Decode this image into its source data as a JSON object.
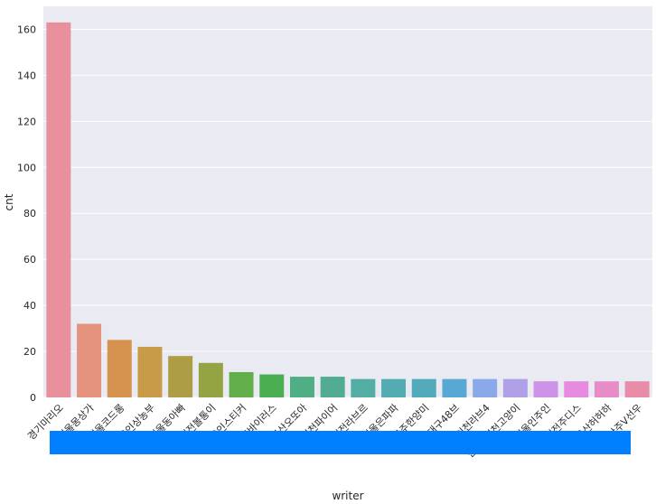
{
  "chart_data": {
    "type": "bar",
    "xlabel": "writer",
    "ylabel": "cnt",
    "ylim": [
      0,
      170
    ],
    "yticks": [
      0,
      20,
      40,
      60,
      80,
      100,
      120,
      140,
      160
    ],
    "grid": true,
    "categories": [
      "경기마리오",
      "서울몽상가",
      "서울코드롱",
      "용인상농부",
      "서울동아빠",
      "대전볼통이",
      "용인스티커",
      "김포바이러스",
      "부산오또아",
      "인천파이어",
      "대전라브르",
      "서울은파파",
      "광주한양미",
      "대구48브",
      "인천라브4",
      "인천V인천고양이",
      "서울인주인",
      "대전주디스",
      "울산허허하",
      "부산주V선우"
    ],
    "values": [
      163,
      32,
      25,
      22,
      18,
      15,
      11,
      10,
      9,
      9,
      8,
      8,
      8,
      8,
      8,
      8,
      7,
      7,
      7,
      7
    ],
    "colors": [
      "#e8909c",
      "#e5937f",
      "#d6924f",
      "#c89b49",
      "#ad9d45",
      "#94a443",
      "#61ae4a",
      "#4bae51",
      "#50ae84",
      "#51ac92",
      "#52aea4",
      "#52acb2",
      "#52aabb",
      "#58a8d4",
      "#8ba9e8",
      "#b0a0e8",
      "#cc93e8",
      "#e68be0",
      "#e88cc8",
      "#e88ca8"
    ],
    "redaction_color": "#0080ff"
  }
}
